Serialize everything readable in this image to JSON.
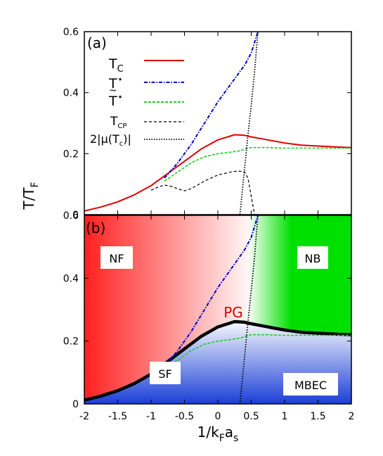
{
  "chart_data": [
    {
      "panel": "(a)",
      "type": "line",
      "xlim": [
        -2,
        2
      ],
      "ylim": [
        0,
        0.6
      ],
      "ylabel": "T/T",
      "ylabel_sub": "F",
      "yticks": [
        0,
        0.2,
        0.4,
        0.6
      ],
      "ytick_labels": [
        "0",
        "0.2",
        "0.4",
        "0.6"
      ],
      "grid": false,
      "legend_position": "top-center",
      "series": [
        {
          "key": "tc",
          "name": "T",
          "name_sub": "C",
          "color": "#e00000",
          "style": "solid",
          "x": [
            -2.0,
            -1.75,
            -1.5,
            -1.25,
            -1.0,
            -0.75,
            -0.5,
            -0.25,
            0.0,
            0.25,
            0.4,
            0.5,
            0.75,
            1.0,
            1.25,
            1.5,
            1.75,
            2.0
          ],
          "y": [
            0.012,
            0.025,
            0.042,
            0.065,
            0.095,
            0.135,
            0.175,
            0.215,
            0.245,
            0.262,
            0.26,
            0.255,
            0.245,
            0.235,
            0.228,
            0.225,
            0.222,
            0.22
          ]
        },
        {
          "key": "tstar",
          "name": "T",
          "name_sup": "⋆",
          "color": "#0000cc",
          "style": "dash-dot",
          "x": [
            -0.8,
            -0.6,
            -0.4,
            -0.2,
            0.0,
            0.2,
            0.4,
            0.5,
            0.6
          ],
          "y": [
            0.12,
            0.17,
            0.23,
            0.3,
            0.37,
            0.43,
            0.49,
            0.53,
            0.6
          ]
        },
        {
          "key": "ttilde",
          "name": "T",
          "name_sup": "⋆",
          "name_accent": "~",
          "color": "#22cc22",
          "style": "dashed",
          "x": [
            -0.8,
            -0.6,
            -0.4,
            -0.2,
            0.0,
            0.2,
            0.35,
            0.4,
            0.5,
            0.75,
            1.0,
            1.5,
            2.0
          ],
          "y": [
            0.11,
            0.14,
            0.17,
            0.19,
            0.2,
            0.205,
            0.21,
            0.215,
            0.22,
            0.22,
            0.218,
            0.218,
            0.218
          ]
        },
        {
          "key": "tcp",
          "name": "T",
          "name_sub": "CP",
          "color": "#000000",
          "style": "dashed",
          "x": [
            -1.0,
            -0.9,
            -0.8,
            -0.7,
            -0.6,
            -0.5,
            -0.4,
            -0.2,
            0.0,
            0.2,
            0.3,
            0.4,
            0.45,
            0.5,
            0.55
          ],
          "y": [
            0.08,
            0.09,
            0.097,
            0.093,
            0.085,
            0.078,
            0.085,
            0.11,
            0.13,
            0.14,
            0.143,
            0.14,
            0.12,
            0.06,
            0.0
          ]
        },
        {
          "key": "mu",
          "name": "2|μ(T",
          "name_sub": "c",
          "name_tail": ")|",
          "color": "#000000",
          "style": "dotted",
          "x": [
            0.33,
            0.4,
            0.45,
            0.5,
            0.55,
            0.6
          ],
          "y": [
            0.0,
            0.15,
            0.26,
            0.36,
            0.47,
            0.6
          ]
        }
      ]
    },
    {
      "panel": "(b)",
      "type": "line",
      "xlim": [
        -2,
        2
      ],
      "ylim": [
        0,
        0.6
      ],
      "xlabel": "1/k",
      "xlabel_sub1": "F",
      "xlabel_mid": "a",
      "xlabel_sub2": "s",
      "xticks": [
        -2,
        -1.5,
        -1,
        -0.5,
        0,
        0.5,
        1,
        1.5,
        2
      ],
      "xtick_labels": [
        "-2",
        "-1.5",
        "-1",
        "-0.5",
        "0",
        "0.5",
        "1",
        "1.5",
        "2"
      ],
      "yticks": [
        0,
        0.2,
        0.4,
        0.6
      ],
      "ytick_labels": [
        "0",
        "0.2",
        "0.4",
        "0.6"
      ],
      "grid": false,
      "region_colors": {
        "nf": "#ff2020",
        "nb": "#00e000",
        "condensed": "#1a3fd6"
      },
      "region_labels": {
        "nf": "NF",
        "nb": "NB",
        "pg": "PG",
        "sf": "SF",
        "mbec": "MBEC"
      },
      "series": [
        {
          "key": "tc",
          "color": "#000000",
          "style": "thick-solid"
        },
        {
          "key": "tstar",
          "color": "#0000cc",
          "style": "dash-dot"
        },
        {
          "key": "ttilde",
          "color": "#22cc22",
          "style": "dashed"
        },
        {
          "key": "mu",
          "color": "#000000",
          "style": "dotted"
        }
      ]
    }
  ]
}
